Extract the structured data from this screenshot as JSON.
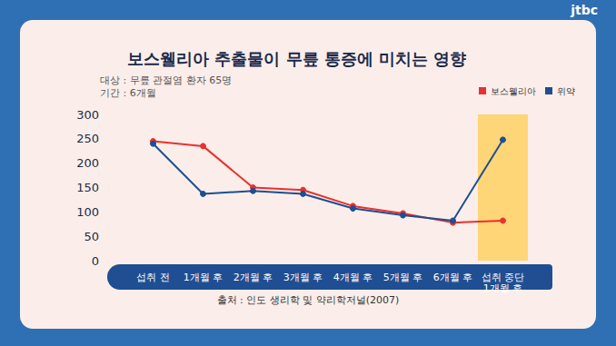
{
  "chart_data": {
    "type": "line",
    "title": "보스웰리아 추출물이 무릎 통증에 미치는 영향",
    "subtitle": [
      "대상 : 무릎 관절염 환자 65명",
      "기간 : 6개월"
    ],
    "annotations": [
      "출처 : 인도 생리학 및 약리학저널(2007)",
      "jtbc"
    ],
    "categories": [
      "섭취 전",
      "1개월 후",
      "2개월 후",
      "3개월 후",
      "4개월 후",
      "5개월 후",
      "6개월 후",
      "섭취 중단\n1개월 후"
    ],
    "series": [
      {
        "name": "보스웰리아",
        "color": "#e8312f",
        "values": [
          245,
          235,
          150,
          145,
          112,
          97,
          78,
          82
        ]
      },
      {
        "name": "위약",
        "color": "#1d4f91",
        "values": [
          240,
          137,
          143,
          137,
          107,
          93,
          82,
          248
        ]
      }
    ],
    "ylim": [
      0,
      300
    ],
    "yticks": [
      0,
      50,
      100,
      150,
      200,
      250,
      300
    ],
    "grid": false,
    "legend": "top-right",
    "marker": "circle"
  }
}
